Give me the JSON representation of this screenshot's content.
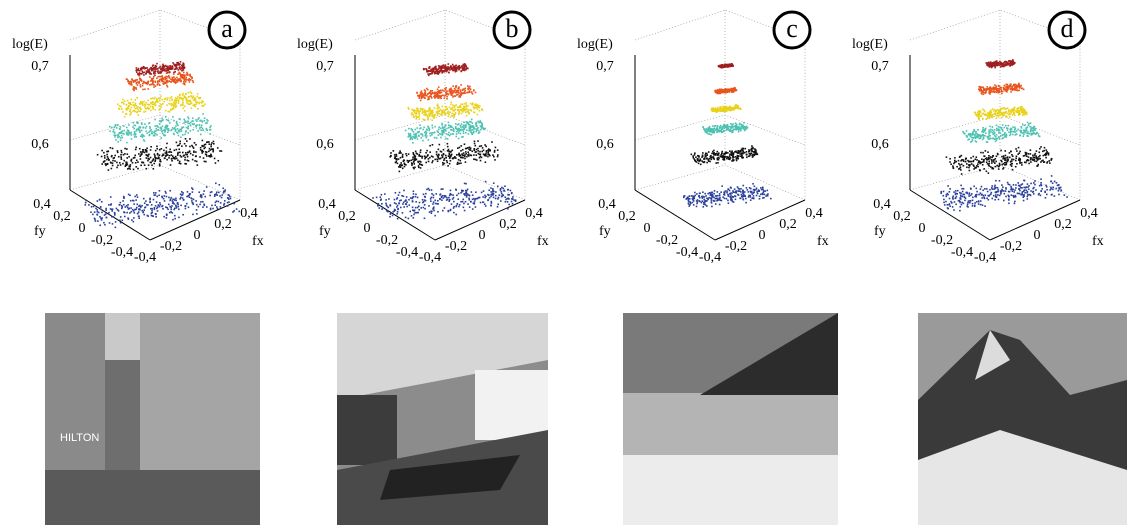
{
  "panels": [
    {
      "label": "a",
      "z_axis_label": "log(E)",
      "z_ticks": [
        "0,7",
        "0,6"
      ],
      "y_axis_label": "fy",
      "y_ticks": [
        "0,4",
        "0,2",
        "0",
        "-0,2",
        "-0,4"
      ],
      "x_axis_label": "fx",
      "x_ticks": [
        "-0,4",
        "-0,2",
        "0",
        "0,2",
        "0,4"
      ]
    },
    {
      "label": "b",
      "z_axis_label": "log(E)",
      "z_ticks": [
        "0,7",
        "0,6"
      ],
      "y_axis_label": "fy",
      "y_ticks": [
        "0,4",
        "0,2",
        "0",
        "-0,2",
        "-0,4"
      ],
      "x_axis_label": "fx",
      "x_ticks": [
        "-0,4",
        "-0,2",
        "0",
        "0,2",
        "0,4"
      ]
    },
    {
      "label": "c",
      "z_axis_label": "log(E)",
      "z_ticks": [
        "0,7",
        "0,6"
      ],
      "y_axis_label": "fy",
      "y_ticks": [
        "0,4",
        "0,2",
        "0",
        "-0,2",
        "-0,4"
      ],
      "x_axis_label": "fx",
      "x_ticks": [
        "-0,4",
        "-0,2",
        "0",
        "0,2",
        "0,4"
      ]
    },
    {
      "label": "d",
      "z_axis_label": "log(E)",
      "z_ticks": [
        "0,7",
        "0,6"
      ],
      "y_axis_label": "fy",
      "y_ticks": [
        "0,4",
        "0,2",
        "0",
        "-0,2",
        "-0,4"
      ],
      "x_axis_label": "fx",
      "x_ticks": [
        "-0,4",
        "-0,2",
        "0",
        "0,2",
        "0,4"
      ]
    }
  ]
}
